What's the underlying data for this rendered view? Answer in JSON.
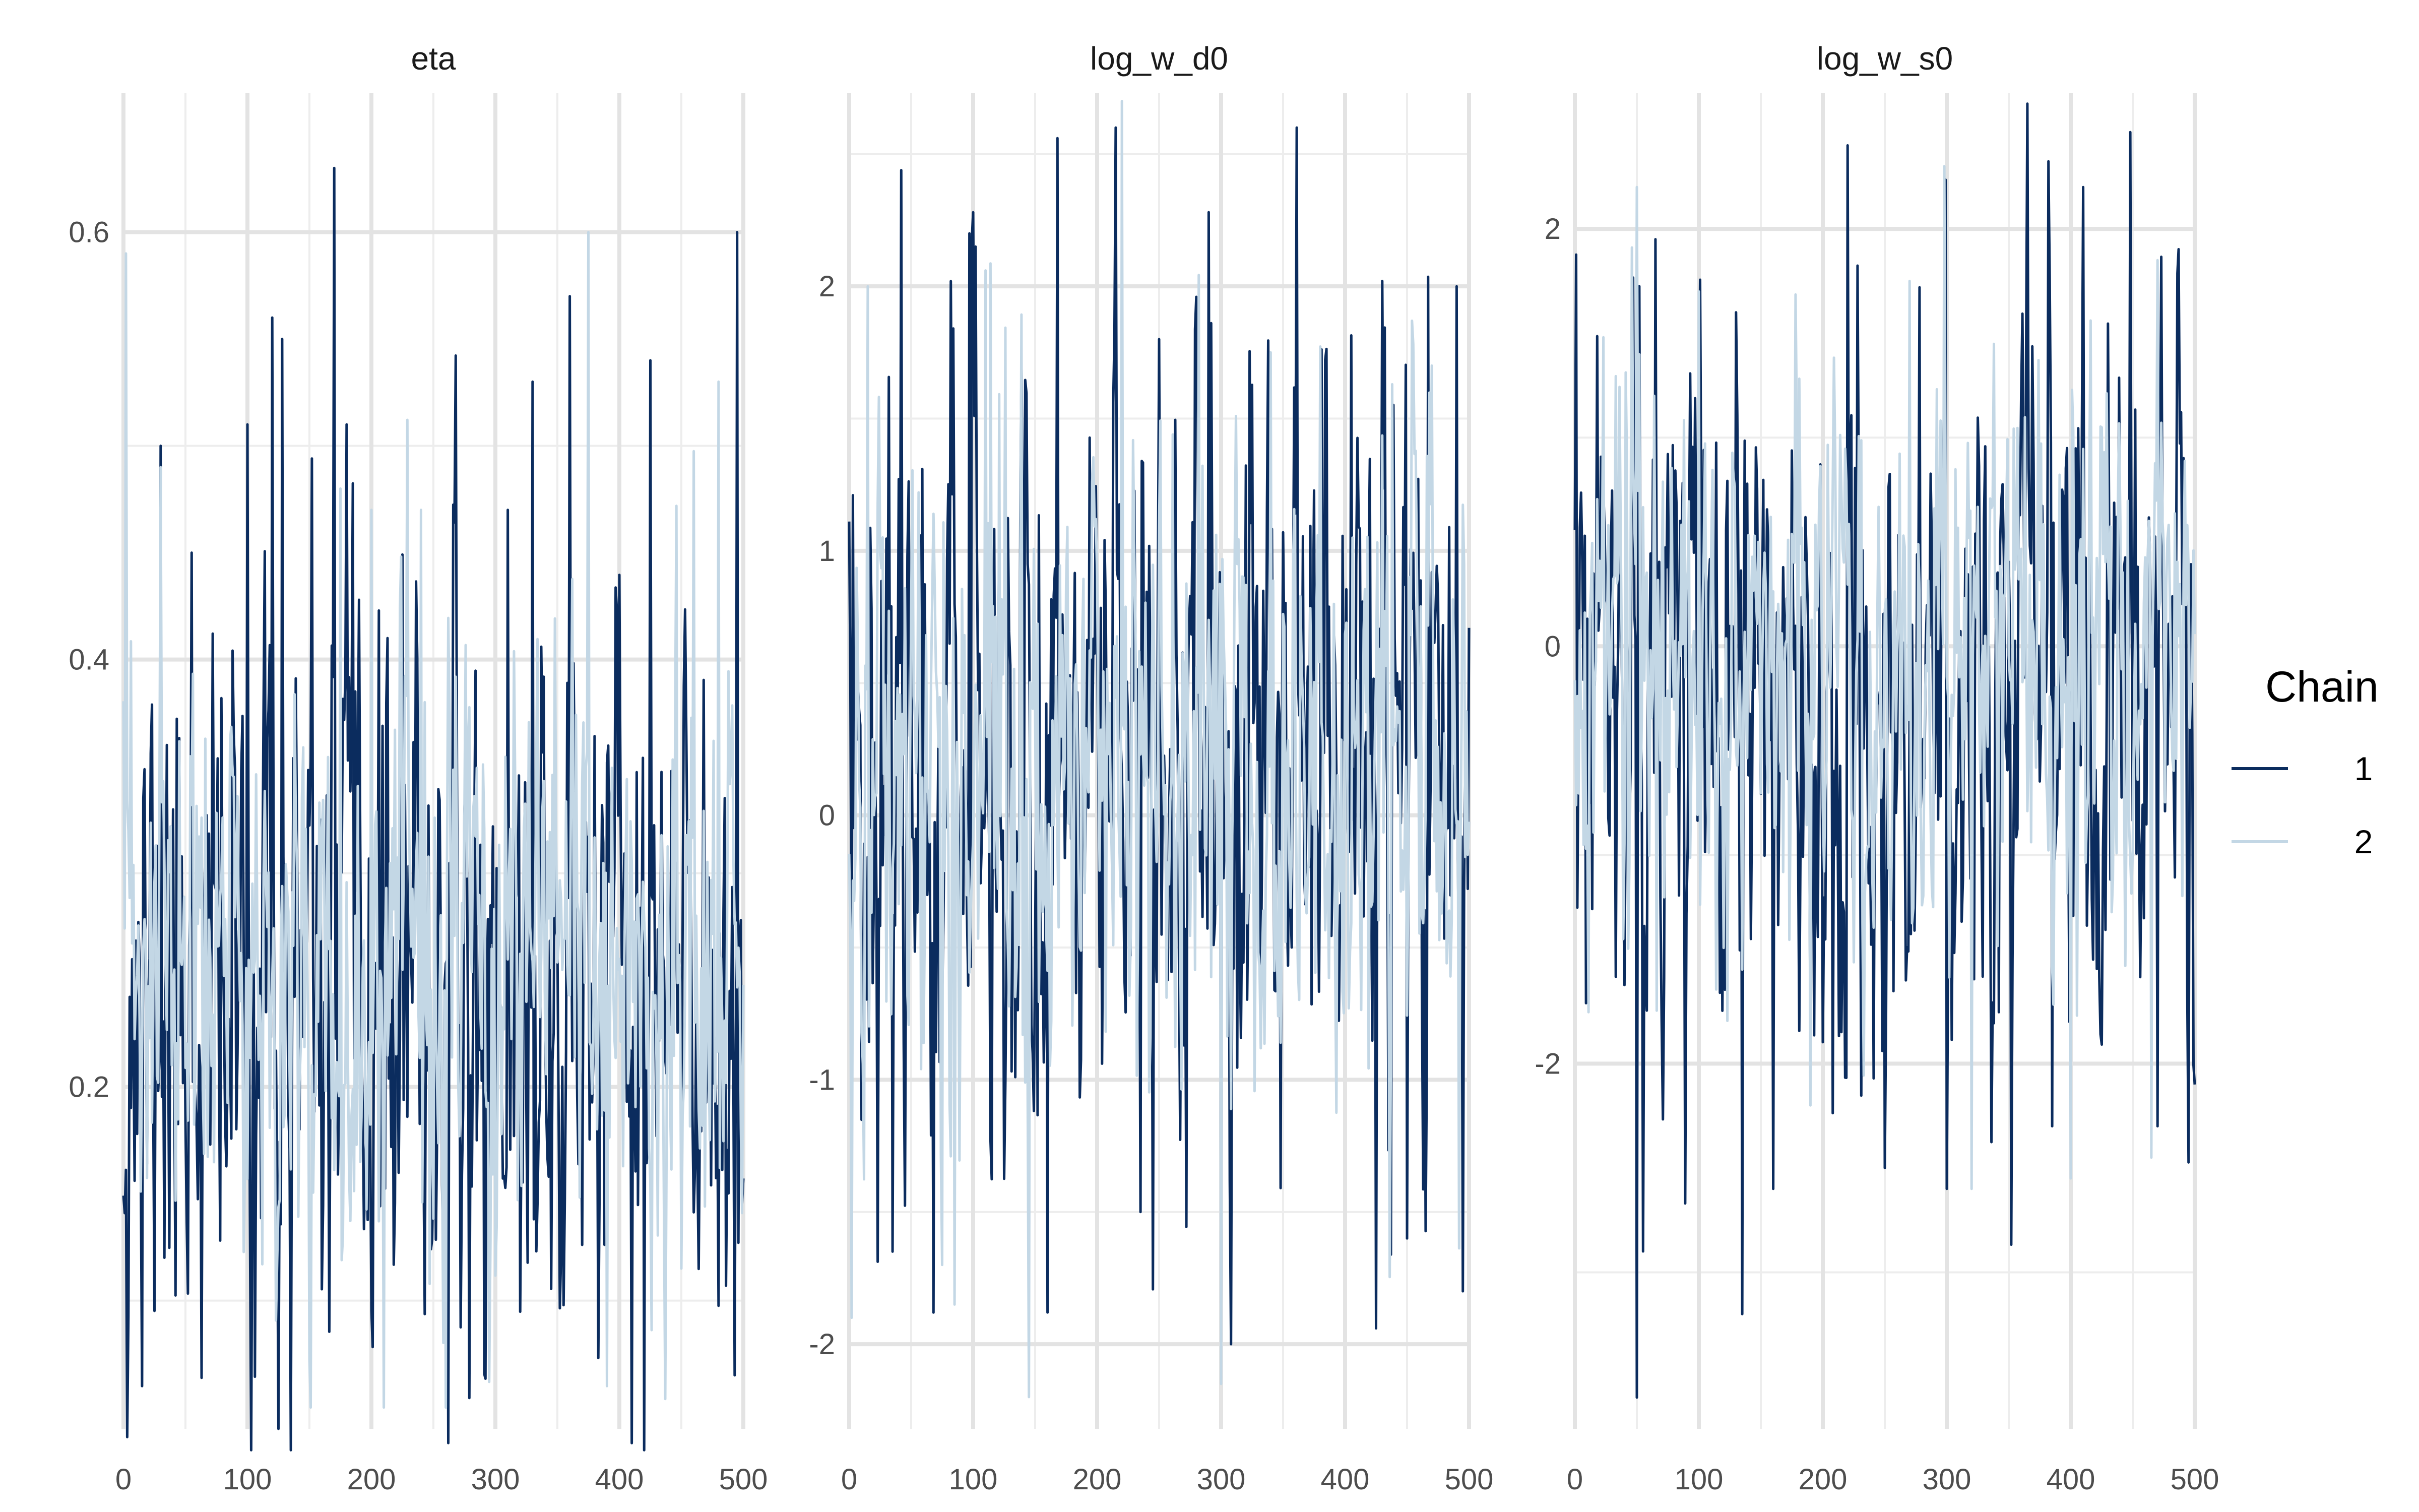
{
  "chart_data": {
    "type": "line",
    "legend": {
      "title": "Chain",
      "position": "right",
      "entries": [
        {
          "label": "1",
          "color": "#0b2c5e"
        },
        {
          "label": "2",
          "color": "#c3d7e5"
        }
      ]
    },
    "grid": true,
    "panels": [
      {
        "title": "eta",
        "xlim": [
          0,
          500
        ],
        "ylim": [
          0.04,
          0.665
        ],
        "xticks": [
          0,
          100,
          200,
          300,
          400,
          500
        ],
        "xtick_labels": [
          "0",
          "100",
          "200",
          "300",
          "400",
          "500"
        ],
        "yticks": [
          0.2,
          0.4,
          0.6
        ],
        "ytick_labels": [
          "0.2",
          "0.4",
          "0.6"
        ],
        "series": [
          {
            "name": "1",
            "mean": 0.24,
            "sd": 0.085,
            "min": 0.03,
            "max": 0.63,
            "seed": 11,
            "peaks": [
              [
                170,
                0.63
              ],
              [
                495,
                0.6
              ],
              [
                120,
                0.56
              ],
              [
                128,
                0.55
              ],
              [
                360,
                0.57
              ],
              [
                425,
                0.54
              ],
              [
                100,
                0.51
              ],
              [
                180,
                0.51
              ],
              [
                330,
                0.53
              ],
              [
                310,
                0.47
              ],
              [
                30,
                0.5
              ],
              [
                55,
                0.45
              ],
              [
                125,
                0.04
              ],
              [
                135,
                0.03
              ],
              [
                420,
                0.03
              ],
              [
                15,
                0.06
              ]
            ]
          },
          {
            "name": "2",
            "mean": 0.25,
            "sd": 0.07,
            "min": 0.05,
            "max": 0.6,
            "seed": 23,
            "peaks": [
              [
                2,
                0.59
              ],
              [
                375,
                0.6
              ],
              [
                480,
                0.53
              ],
              [
                30,
                0.49
              ],
              [
                200,
                0.47
              ],
              [
                240,
                0.47
              ],
              [
                175,
                0.48
              ],
              [
                210,
                0.05
              ],
              [
                260,
                0.05
              ],
              [
                390,
                0.06
              ]
            ]
          }
        ]
      },
      {
        "title": "log_w_d0",
        "xlim": [
          0,
          500
        ],
        "ylim": [
          -2.32,
          2.73
        ],
        "xticks": [
          0,
          100,
          200,
          300,
          400,
          500
        ],
        "xtick_labels": [
          "0",
          "100",
          "200",
          "300",
          "400",
          "500"
        ],
        "yticks": [
          -2,
          -1,
          0,
          1,
          2
        ],
        "ytick_labels": [
          "-2",
          "-1",
          "0",
          "1",
          "2"
        ],
        "series": [
          {
            "name": "1",
            "mean": 0.3,
            "sd": 0.75,
            "min": -2.0,
            "max": 2.6,
            "seed": 37,
            "peaks": [
              [
                168,
                2.56
              ],
              [
                97,
                2.2
              ],
              [
                102,
                2.15
              ],
              [
                290,
                2.28
              ],
              [
                430,
                2.02
              ],
              [
                490,
                2.0
              ],
              [
                250,
                1.8
              ],
              [
                35,
                -1.65
              ],
              [
                160,
                -1.88
              ],
              [
                235,
                -1.5
              ],
              [
                300,
                -1.85
              ],
              [
                425,
                -1.94
              ],
              [
                450,
                -1.6
              ],
              [
                495,
                -1.8
              ]
            ]
          },
          {
            "name": "2",
            "mean": 0.2,
            "sd": 0.65,
            "min": -2.2,
            "max": 2.7,
            "seed": 41,
            "peaks": [
              [
                220,
                2.7
              ],
              [
                15,
                2.0
              ],
              [
                110,
                2.06
              ],
              [
                300,
                -2.15
              ],
              [
                2,
                -1.9
              ],
              [
                85,
                -1.85
              ],
              [
                75,
                -1.7
              ],
              [
                340,
                1.75
              ],
              [
                470,
                1.7
              ]
            ]
          }
        ]
      },
      {
        "title": "log_w_s0",
        "xlim": [
          0,
          500
        ],
        "ylim": [
          -3.75,
          2.65
        ],
        "xticks": [
          0,
          100,
          200,
          300,
          400,
          500
        ],
        "xtick_labels": [
          "0",
          "100",
          "200",
          "300",
          "400",
          "500"
        ],
        "yticks": [
          -2,
          0,
          2
        ],
        "ytick_labels": [
          "-2",
          "0",
          "2"
        ],
        "series": [
          {
            "name": "1",
            "mean": -0.25,
            "sd": 0.85,
            "min": -3.6,
            "max": 2.6,
            "seed": 53,
            "peaks": [
              [
                365,
                2.6
              ],
              [
                220,
                2.4
              ],
              [
                410,
                2.2
              ],
              [
                65,
                1.95
              ],
              [
                130,
                1.6
              ],
              [
                50,
                -3.6
              ],
              [
                55,
                -2.9
              ],
              [
                135,
                -3.2
              ],
              [
                160,
                -2.6
              ],
              [
                250,
                -2.5
              ],
              [
                300,
                -2.6
              ],
              [
                385,
                -2.3
              ],
              [
                470,
                -2.3
              ],
              [
                500,
                -2.1
              ]
            ]
          },
          {
            "name": "2",
            "mean": -0.05,
            "sd": 0.7,
            "min": -2.8,
            "max": 2.3,
            "seed": 67,
            "peaks": [
              [
                50,
                2.2
              ],
              [
                470,
                1.85
              ],
              [
                270,
                1.75
              ],
              [
                100,
                1.7
              ],
              [
                320,
                -2.6
              ],
              [
                400,
                -2.55
              ],
              [
                465,
                -2.45
              ],
              [
                190,
                -2.2
              ]
            ]
          }
        ]
      }
    ]
  }
}
